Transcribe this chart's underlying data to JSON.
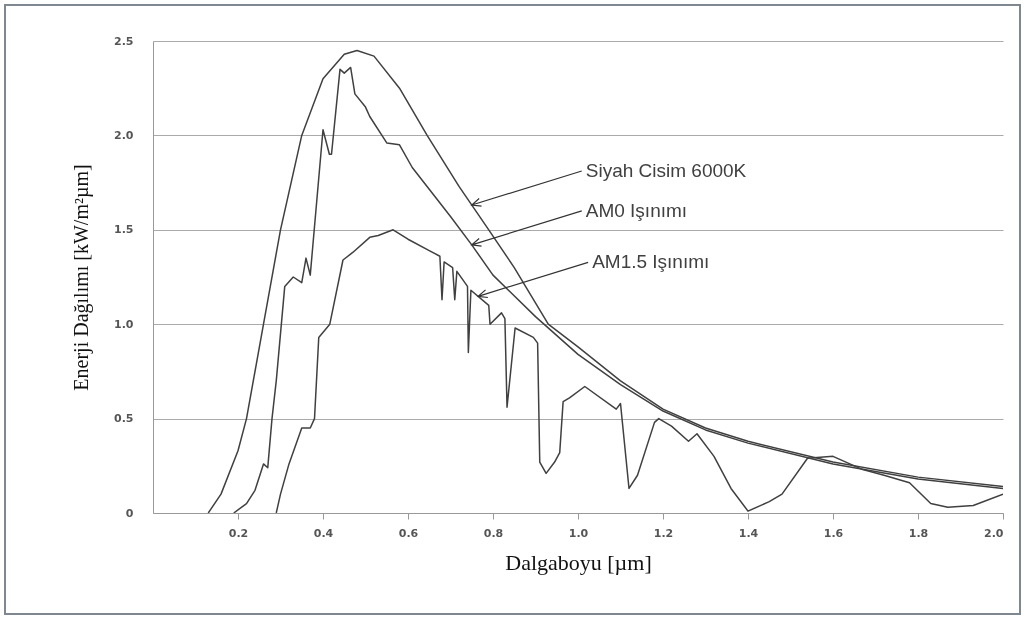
{
  "chart_data": {
    "type": "line",
    "xlabel": "Dalgaboyu [µm]",
    "ylabel": "Enerji Dağılımı [kW/m²µm]",
    "xlim": [
      0,
      2.0
    ],
    "xticks": [
      0.2,
      0.4,
      0.6,
      0.8,
      {
        "value": 1,
        "label": "1.0"
      },
      1.2,
      1.4,
      1.6,
      1.8,
      {
        "value": 2,
        "label": "2.0"
      }
    ],
    "ylim": [
      0,
      2.5
    ],
    "yticks": [
      0,
      0.5,
      {
        "value": 1,
        "label": "1.0"
      },
      1.5,
      {
        "value": 2,
        "label": "2.0"
      },
      2.5
    ],
    "grid": "y",
    "line_style": "solid",
    "annotations": [
      "Siyah Cisim 6000K",
      "AM0 Işınımı",
      "AM1.5 Işınımı"
    ],
    "series": [
      {
        "color": "#404040",
        "x": [
          0.13,
          0.16,
          0.2,
          0.22,
          0.26,
          0.3,
          0.35,
          0.4,
          0.45,
          0.48,
          0.52,
          0.58,
          0.645,
          0.72,
          0.79,
          0.85,
          0.93,
          1.0,
          1.1,
          1.2,
          1.3,
          1.4,
          1.6,
          1.8,
          2.0
        ],
        "values": [
          0,
          0.1,
          0.33,
          0.5,
          1.0,
          1.5,
          2.0,
          2.3,
          2.43,
          2.45,
          2.42,
          2.25,
          2.0,
          1.73,
          1.5,
          1.3,
          1.0,
          0.88,
          0.7,
          0.55,
          0.45,
          0.38,
          0.27,
          0.19,
          0.14
        ]
      },
      {
        "color": "#404040",
        "x": [
          0.19,
          0.22,
          0.24,
          0.26,
          0.27,
          0.28,
          0.29,
          0.31,
          0.33,
          0.35,
          0.36,
          0.37,
          0.4,
          0.415,
          0.42,
          0.44,
          0.45,
          0.465,
          0.475,
          0.5,
          0.51,
          0.55,
          0.58,
          0.61,
          0.7,
          0.75,
          0.8,
          0.9,
          1.0,
          1.1,
          1.2,
          1.3,
          1.4,
          1.6,
          1.8,
          2.0
        ],
        "values": [
          0,
          0.05,
          0.12,
          0.26,
          0.24,
          0.5,
          0.7,
          1.2,
          1.25,
          1.22,
          1.35,
          1.26,
          2.03,
          1.9,
          1.9,
          2.35,
          2.33,
          2.36,
          2.22,
          2.15,
          2.1,
          1.96,
          1.95,
          1.83,
          1.57,
          1.42,
          1.26,
          1.04,
          0.84,
          0.68,
          0.54,
          0.44,
          0.37,
          0.26,
          0.18,
          0.13
        ]
      },
      {
        "color": "#404040",
        "x": [
          0.29,
          0.3,
          0.32,
          0.35,
          0.37,
          0.38,
          0.39,
          0.416,
          0.447,
          0.47,
          0.51,
          0.53,
          0.565,
          0.6,
          0.65,
          0.675,
          0.68,
          0.685,
          0.705,
          0.71,
          0.715,
          0.74,
          0.742,
          0.748,
          0.79,
          0.793,
          0.82,
          0.828,
          0.833,
          0.852,
          0.895,
          0.905,
          0.91,
          0.925,
          0.945,
          0.957,
          0.965,
          0.98,
          1.016,
          1.09,
          1.1,
          1.12,
          1.14,
          1.18,
          1.19,
          1.22,
          1.26,
          1.28,
          1.32,
          1.36,
          1.4,
          1.45,
          1.48,
          1.54,
          1.6,
          1.67,
          1.72,
          1.78,
          1.83,
          1.87,
          1.93,
          2.0
        ],
        "values": [
          0,
          0.1,
          0.26,
          0.45,
          0.45,
          0.5,
          0.93,
          1.0,
          1.34,
          1.38,
          1.46,
          1.47,
          1.5,
          1.45,
          1.39,
          1.36,
          1.13,
          1.33,
          1.3,
          1.13,
          1.28,
          1.2,
          0.85,
          1.18,
          1.1,
          1.0,
          1.06,
          1.03,
          0.56,
          0.98,
          0.93,
          0.9,
          0.27,
          0.21,
          0.27,
          0.32,
          0.59,
          0.61,
          0.67,
          0.55,
          0.58,
          0.13,
          0.2,
          0.48,
          0.5,
          0.46,
          0.38,
          0.42,
          0.3,
          0.13,
          0.01,
          0.06,
          0.1,
          0.29,
          0.3,
          0.23,
          0.2,
          0.16,
          0.05,
          0.03,
          0.04,
          0.1
        ]
      }
    ]
  }
}
